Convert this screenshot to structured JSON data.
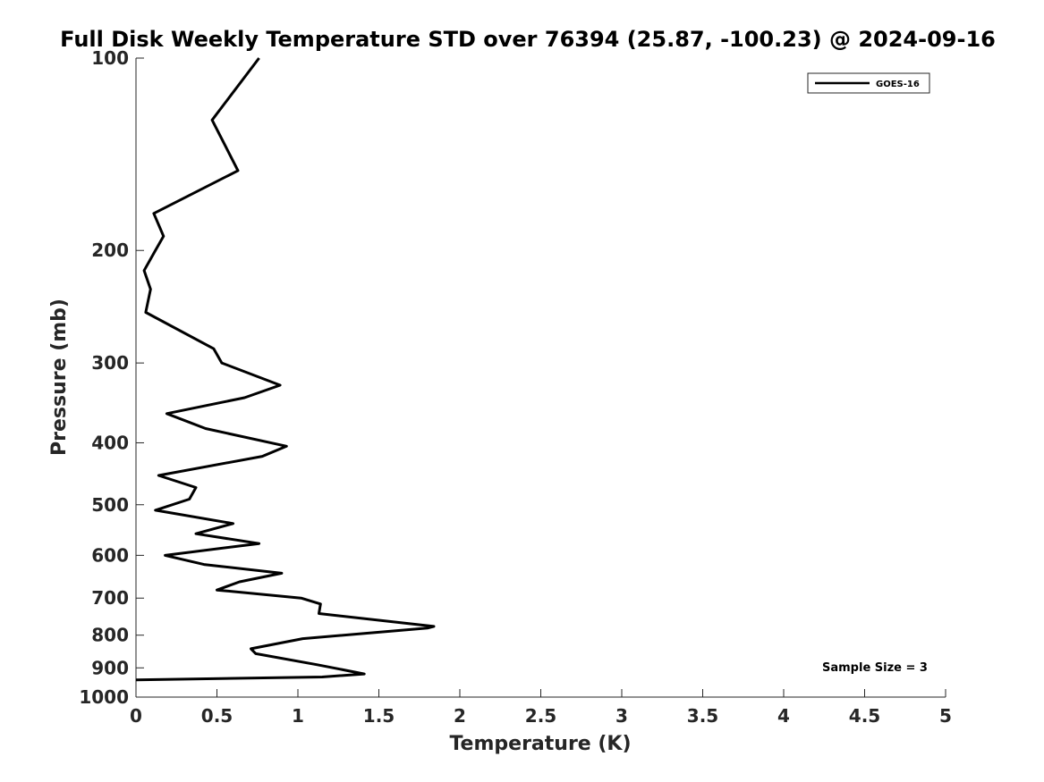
{
  "chart_data": {
    "type": "line",
    "title": "Full Disk Weekly Temperature STD over 76394 (25.87, -100.23) @ 2024-09-16",
    "xlabel": "Temperature (K)",
    "ylabel": "Pressure (mb)",
    "xlim": [
      0,
      5
    ],
    "ylim": [
      100,
      1000
    ],
    "y_scale": "log",
    "y_reversed": true,
    "x_ticks": [
      "0",
      "0.5",
      "1",
      "1.5",
      "2",
      "2.5",
      "3",
      "3.5",
      "4",
      "4.5",
      "5"
    ],
    "y_ticks": [
      "100",
      "200",
      "300",
      "400",
      "500",
      "600",
      "700",
      "800",
      "900",
      "1000"
    ],
    "grid": false,
    "legend_position": "top-right",
    "series": [
      {
        "name": "GOES-16",
        "color": "#000000",
        "points": [
          [
            0.76,
            100
          ],
          [
            0.47,
            125
          ],
          [
            0.63,
            150
          ],
          [
            0.11,
            175
          ],
          [
            0.17,
            190
          ],
          [
            0.12,
            200
          ],
          [
            0.05,
            215
          ],
          [
            0.09,
            230
          ],
          [
            0.06,
            250
          ],
          [
            0.48,
            285
          ],
          [
            0.53,
            300
          ],
          [
            0.89,
            325
          ],
          [
            0.67,
            340
          ],
          [
            0.19,
            360
          ],
          [
            0.43,
            380
          ],
          [
            0.93,
            405
          ],
          [
            0.78,
            420
          ],
          [
            0.14,
            450
          ],
          [
            0.37,
            470
          ],
          [
            0.33,
            490
          ],
          [
            0.12,
            510
          ],
          [
            0.6,
            535
          ],
          [
            0.37,
            555
          ],
          [
            0.76,
            575
          ],
          [
            0.18,
            600
          ],
          [
            0.42,
            620
          ],
          [
            0.9,
            640
          ],
          [
            0.64,
            660
          ],
          [
            0.5,
            680
          ],
          [
            1.02,
            700
          ],
          [
            1.14,
            715
          ],
          [
            1.13,
            740
          ],
          [
            1.84,
            775
          ],
          [
            1.8,
            780
          ],
          [
            1.03,
            810
          ],
          [
            0.71,
            840
          ],
          [
            0.74,
            855
          ],
          [
            1.12,
            890
          ],
          [
            1.41,
            920
          ],
          [
            1.15,
            930
          ],
          [
            0.0,
            940
          ]
        ]
      }
    ],
    "annotation": "Sample Size = 3"
  }
}
